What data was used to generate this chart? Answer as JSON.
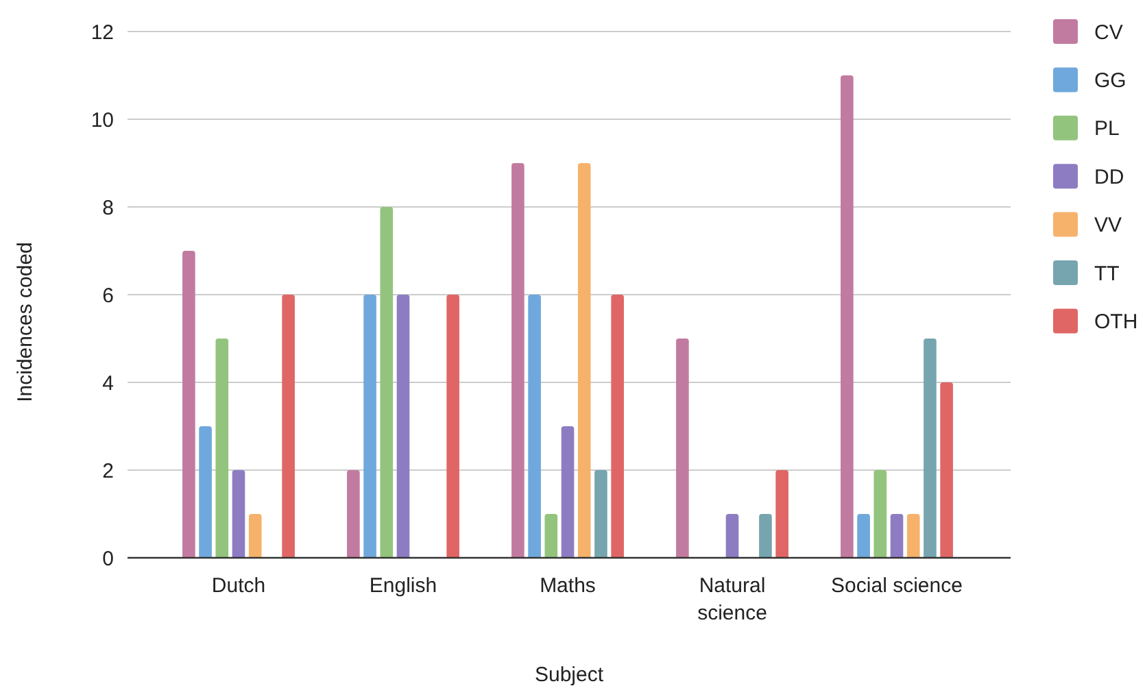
{
  "chart_data": {
    "type": "bar",
    "xlabel": "Subject",
    "ylabel": "Incidences coded",
    "categories": [
      "Dutch",
      "English",
      "Maths",
      "Natural science",
      "Social science"
    ],
    "series": [
      {
        "name": "CV",
        "color": "#c27ba0",
        "values": [
          7,
          2,
          9,
          5,
          11
        ]
      },
      {
        "name": "GG",
        "color": "#6fa8dc",
        "values": [
          3,
          6,
          6,
          0,
          1
        ]
      },
      {
        "name": "PL",
        "color": "#93c47d",
        "values": [
          5,
          8,
          1,
          0,
          2
        ]
      },
      {
        "name": "DD",
        "color": "#8e7cc3",
        "values": [
          2,
          6,
          3,
          1,
          1
        ]
      },
      {
        "name": "VV",
        "color": "#f6b26b",
        "values": [
          1,
          0,
          9,
          0,
          1
        ]
      },
      {
        "name": "TT",
        "color": "#76a5af",
        "values": [
          0,
          0,
          2,
          1,
          5
        ]
      },
      {
        "name": "OTH",
        "color": "#e06666",
        "values": [
          6,
          6,
          6,
          2,
          4
        ]
      }
    ],
    "ylim": [
      0,
      12
    ],
    "yticks": [
      0,
      2,
      4,
      6,
      8,
      10,
      12
    ],
    "grid": "y",
    "legend": "top right"
  }
}
